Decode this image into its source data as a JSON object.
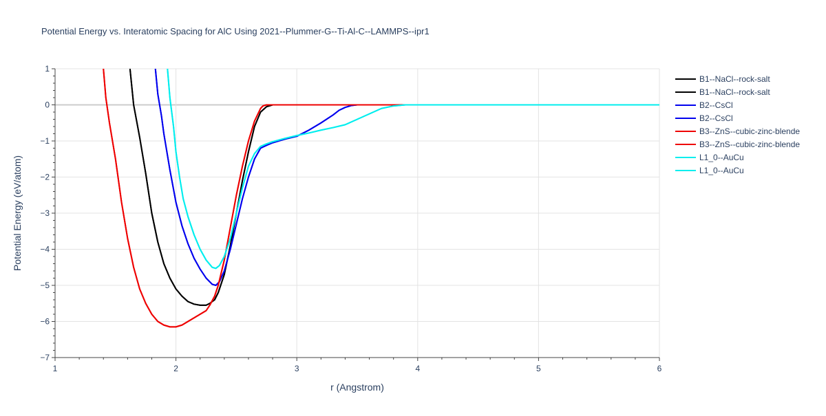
{
  "chart_data": {
    "type": "line",
    "title": "Potential Energy vs. Interatomic Spacing for AlC Using 2021--Plummer-G--Ti-Al-C--LAMMPS--ipr1",
    "xlabel": "r (Angstrom)",
    "ylabel": "Potential Energy (eV/atom)",
    "xlim": [
      1,
      6
    ],
    "ylim": [
      -7,
      1
    ],
    "x_ticks": [
      "1",
      "2",
      "3",
      "4",
      "5",
      "6"
    ],
    "y_ticks": [
      "1",
      "0",
      "−1",
      "−2",
      "−3",
      "−4",
      "−5",
      "−6",
      "−7"
    ],
    "grid": true,
    "legend_position": "right",
    "series": [
      {
        "name": "B1--NaCl--rock-salt",
        "color": "#000000",
        "x": [
          1.62,
          1.65,
          1.7,
          1.75,
          1.8,
          1.85,
          1.9,
          1.95,
          2.0,
          2.05,
          2.1,
          2.15,
          2.2,
          2.25,
          2.28,
          2.32,
          2.35,
          2.4,
          2.45,
          2.5,
          2.55,
          2.6,
          2.65,
          2.7,
          2.75,
          2.8,
          2.85,
          2.9,
          3.0,
          3.5,
          4.0,
          5.0,
          6.0
        ],
        "y": [
          1.0,
          0.0,
          -0.9,
          -1.9,
          -3.0,
          -3.8,
          -4.4,
          -4.8,
          -5.1,
          -5.3,
          -5.45,
          -5.52,
          -5.55,
          -5.55,
          -5.5,
          -5.4,
          -5.2,
          -4.7,
          -3.9,
          -3.0,
          -2.1,
          -1.3,
          -0.6,
          -0.2,
          -0.05,
          0.0,
          0.0,
          0.0,
          0.0,
          0.0,
          0.0,
          0.0,
          0.0
        ]
      },
      {
        "name": "B1--NaCl--rock-salt",
        "color": "#000000",
        "x": [
          1.62,
          1.65,
          1.7,
          1.75,
          1.8,
          1.85,
          1.9,
          1.95,
          2.0,
          2.05,
          2.1,
          2.15,
          2.2,
          2.25,
          2.28,
          2.32,
          2.35,
          2.4,
          2.45,
          2.5,
          2.55,
          2.6,
          2.65,
          2.7,
          2.75,
          2.8,
          2.85,
          2.9,
          3.0,
          3.5,
          4.0,
          5.0,
          6.0
        ],
        "y": [
          1.0,
          0.0,
          -0.9,
          -1.9,
          -3.0,
          -3.8,
          -4.4,
          -4.8,
          -5.1,
          -5.3,
          -5.45,
          -5.52,
          -5.55,
          -5.55,
          -5.5,
          -5.4,
          -5.2,
          -4.7,
          -3.9,
          -3.0,
          -2.1,
          -1.3,
          -0.6,
          -0.2,
          -0.05,
          0.0,
          0.0,
          0.0,
          0.0,
          0.0,
          0.0,
          0.0,
          0.0
        ]
      },
      {
        "name": "B2--CsCl",
        "color": "#0000ee",
        "x": [
          1.83,
          1.85,
          1.88,
          1.9,
          1.95,
          2.0,
          2.05,
          2.1,
          2.15,
          2.2,
          2.25,
          2.3,
          2.33,
          2.36,
          2.4,
          2.45,
          2.5,
          2.55,
          2.6,
          2.65,
          2.7,
          2.75,
          2.8,
          2.9,
          3.0,
          3.1,
          3.2,
          3.3,
          3.35,
          3.4,
          3.45,
          3.5,
          3.6,
          4.0,
          5.0,
          6.0
        ],
        "y": [
          1.0,
          0.3,
          -0.3,
          -0.8,
          -1.8,
          -2.7,
          -3.35,
          -3.85,
          -4.25,
          -4.55,
          -4.8,
          -4.97,
          -5.0,
          -4.9,
          -4.6,
          -4.0,
          -3.3,
          -2.6,
          -2.0,
          -1.5,
          -1.2,
          -1.12,
          -1.05,
          -0.95,
          -0.87,
          -0.7,
          -0.5,
          -0.28,
          -0.15,
          -0.07,
          -0.02,
          0.0,
          0.0,
          0.0,
          0.0,
          0.0
        ]
      },
      {
        "name": "B2--CsCl",
        "color": "#0000ee",
        "x": [
          1.83,
          1.85,
          1.88,
          1.9,
          1.95,
          2.0,
          2.05,
          2.1,
          2.15,
          2.2,
          2.25,
          2.3,
          2.33,
          2.36,
          2.4,
          2.45,
          2.5,
          2.55,
          2.6,
          2.65,
          2.7,
          2.75,
          2.8,
          2.9,
          3.0,
          3.1,
          3.2,
          3.3,
          3.35,
          3.4,
          3.45,
          3.5,
          3.6,
          4.0,
          5.0,
          6.0
        ],
        "y": [
          1.0,
          0.3,
          -0.3,
          -0.8,
          -1.8,
          -2.7,
          -3.35,
          -3.85,
          -4.25,
          -4.55,
          -4.8,
          -4.97,
          -5.0,
          -4.9,
          -4.6,
          -4.0,
          -3.3,
          -2.6,
          -2.0,
          -1.5,
          -1.2,
          -1.12,
          -1.05,
          -0.95,
          -0.87,
          -0.7,
          -0.5,
          -0.28,
          -0.15,
          -0.07,
          -0.02,
          0.0,
          0.0,
          0.0,
          0.0,
          0.0
        ]
      },
      {
        "name": "B3--ZnS--cubic-zinc-blende",
        "color": "#ee0000",
        "x": [
          1.4,
          1.42,
          1.45,
          1.5,
          1.55,
          1.6,
          1.65,
          1.7,
          1.75,
          1.8,
          1.85,
          1.9,
          1.95,
          2.0,
          2.05,
          2.1,
          2.15,
          2.2,
          2.25,
          2.28,
          2.32,
          2.35,
          2.4,
          2.45,
          2.5,
          2.55,
          2.6,
          2.65,
          2.7,
          2.72,
          2.75,
          2.8,
          2.9,
          3.0,
          3.5,
          4.0,
          5.0,
          6.0
        ],
        "y": [
          1.0,
          0.2,
          -0.5,
          -1.5,
          -2.7,
          -3.7,
          -4.5,
          -5.1,
          -5.5,
          -5.8,
          -6.0,
          -6.1,
          -6.15,
          -6.15,
          -6.1,
          -6.0,
          -5.9,
          -5.8,
          -5.7,
          -5.55,
          -5.3,
          -5.0,
          -4.3,
          -3.4,
          -2.5,
          -1.7,
          -1.0,
          -0.45,
          -0.1,
          -0.03,
          0.0,
          0.0,
          0.0,
          0.0,
          0.0,
          0.0,
          0.0,
          0.0
        ]
      },
      {
        "name": "B3--ZnS--cubic-zinc-blende",
        "color": "#ee0000",
        "x": [
          1.4,
          1.42,
          1.45,
          1.5,
          1.55,
          1.6,
          1.65,
          1.7,
          1.75,
          1.8,
          1.85,
          1.9,
          1.95,
          2.0,
          2.05,
          2.1,
          2.15,
          2.2,
          2.25,
          2.28,
          2.32,
          2.35,
          2.4,
          2.45,
          2.5,
          2.55,
          2.6,
          2.65,
          2.7,
          2.72,
          2.75,
          2.8,
          2.9,
          3.0,
          3.5,
          4.0,
          5.0,
          6.0
        ],
        "y": [
          1.0,
          0.2,
          -0.5,
          -1.5,
          -2.7,
          -3.7,
          -4.5,
          -5.1,
          -5.5,
          -5.8,
          -6.0,
          -6.1,
          -6.15,
          -6.15,
          -6.1,
          -6.0,
          -5.9,
          -5.8,
          -5.7,
          -5.55,
          -5.3,
          -5.0,
          -4.3,
          -3.4,
          -2.5,
          -1.7,
          -1.0,
          -0.45,
          -0.1,
          -0.03,
          0.0,
          0.0,
          0.0,
          0.0,
          0.0,
          0.0,
          0.0,
          0.0
        ]
      },
      {
        "name": "L1_0--AuCu",
        "color": "#00eeee",
        "x": [
          1.93,
          1.95,
          1.98,
          2.0,
          2.03,
          2.06,
          2.1,
          2.15,
          2.2,
          2.25,
          2.3,
          2.33,
          2.36,
          2.4,
          2.45,
          2.5,
          2.55,
          2.6,
          2.65,
          2.7,
          2.75,
          2.8,
          2.9,
          3.0,
          3.1,
          3.2,
          3.3,
          3.4,
          3.5,
          3.6,
          3.7,
          3.8,
          3.9,
          4.0,
          5.0,
          6.0
        ],
        "y": [
          1.0,
          0.2,
          -0.6,
          -1.3,
          -2.0,
          -2.6,
          -3.1,
          -3.6,
          -4.0,
          -4.3,
          -4.5,
          -4.53,
          -4.45,
          -4.2,
          -3.7,
          -3.0,
          -2.3,
          -1.7,
          -1.35,
          -1.15,
          -1.08,
          -1.02,
          -0.93,
          -0.85,
          -0.78,
          -0.7,
          -0.63,
          -0.55,
          -0.4,
          -0.25,
          -0.1,
          -0.03,
          0.0,
          0.0,
          0.0,
          0.0
        ]
      },
      {
        "name": "L1_0--AuCu",
        "color": "#00eeee",
        "x": [
          1.93,
          1.95,
          1.98,
          2.0,
          2.03,
          2.06,
          2.1,
          2.15,
          2.2,
          2.25,
          2.3,
          2.33,
          2.36,
          2.4,
          2.45,
          2.5,
          2.55,
          2.6,
          2.65,
          2.7,
          2.75,
          2.8,
          2.9,
          3.0,
          3.1,
          3.2,
          3.3,
          3.4,
          3.5,
          3.6,
          3.7,
          3.8,
          3.9,
          4.0,
          5.0,
          6.0
        ],
        "y": [
          1.0,
          0.2,
          -0.6,
          -1.3,
          -2.0,
          -2.6,
          -3.1,
          -3.6,
          -4.0,
          -4.3,
          -4.5,
          -4.53,
          -4.45,
          -4.2,
          -3.7,
          -3.0,
          -2.3,
          -1.7,
          -1.35,
          -1.15,
          -1.08,
          -1.02,
          -0.93,
          -0.85,
          -0.78,
          -0.7,
          -0.63,
          -0.55,
          -0.4,
          -0.25,
          -0.1,
          -0.03,
          0.0,
          0.0,
          0.0,
          0.0
        ]
      }
    ]
  }
}
